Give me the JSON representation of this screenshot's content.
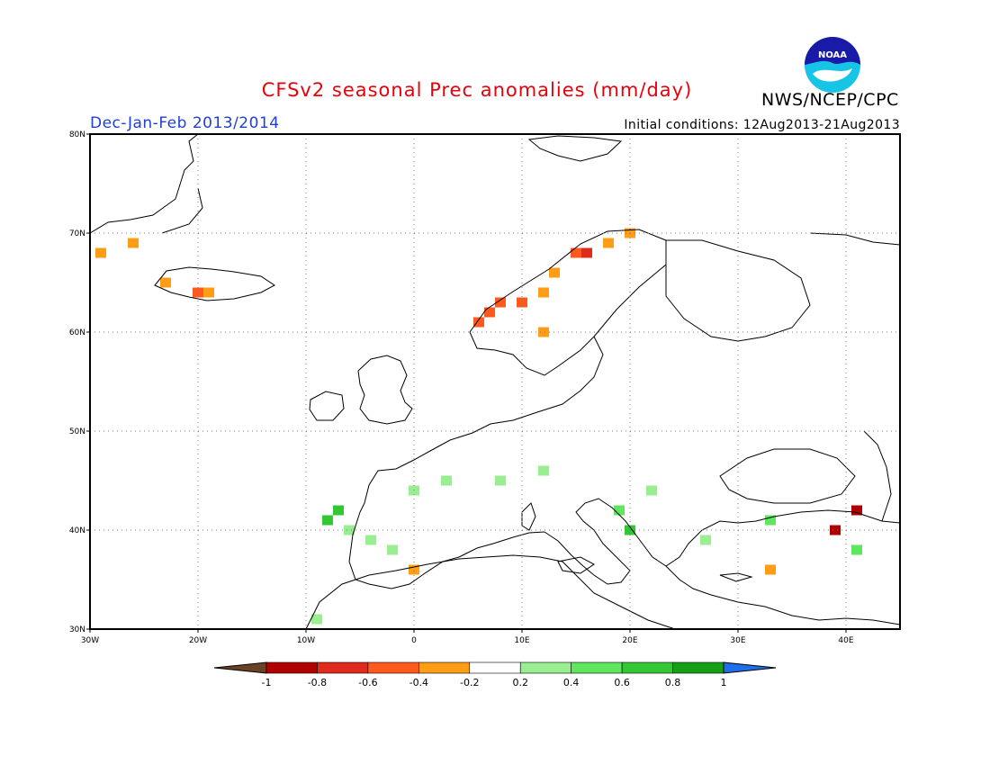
{
  "title": "CFSv2 seasonal Prec anomalies (mm/day)",
  "agency": "NWS/NCEP/CPC",
  "logo_text": "NOAA",
  "season": "Dec-Jan-Feb 2013/2014",
  "initial_conditions": "Initial conditions: 12Aug2013-21Aug2013",
  "map": {
    "lon_range": [
      -30,
      45
    ],
    "lat_range": [
      30,
      80
    ],
    "x_ticks": [
      {
        "lon": -30,
        "label": "30W"
      },
      {
        "lon": -20,
        "label": "20W"
      },
      {
        "lon": -10,
        "label": "10W"
      },
      {
        "lon": 0,
        "label": "0"
      },
      {
        "lon": 10,
        "label": "10E"
      },
      {
        "lon": 20,
        "label": "20E"
      },
      {
        "lon": 30,
        "label": "30E"
      },
      {
        "lon": 40,
        "label": "40E"
      }
    ],
    "y_ticks": [
      {
        "lat": 30,
        "label": "30N"
      },
      {
        "lat": 40,
        "label": "40N"
      },
      {
        "lat": 50,
        "label": "50N"
      },
      {
        "lat": 60,
        "label": "60N"
      },
      {
        "lat": 70,
        "label": "70N"
      },
      {
        "lat": 80,
        "label": "80N"
      }
    ],
    "grid": "dotted"
  },
  "colorbar": {
    "labels": [
      "-1",
      "-0.8",
      "-0.6",
      "-0.4",
      "-0.2",
      "0.2",
      "0.4",
      "0.6",
      "0.8",
      "1"
    ],
    "colors": [
      "#6b4226",
      "#b00000",
      "#e02a1b",
      "#ff5a1e",
      "#ff9e16",
      "#ffffff",
      "#98ee90",
      "#5ee65e",
      "#33c833",
      "#16a016",
      "#1f6fe8"
    ]
  },
  "chart_data": {
    "type": "heatmap",
    "title": "CFSv2 seasonal Prec anomalies (mm/day)",
    "cell_size_deg": 1,
    "anomaly_cells": [
      {
        "lon": -29,
        "lat": 68,
        "value": -0.3
      },
      {
        "lon": -26,
        "lat": 69,
        "value": -0.3
      },
      {
        "lon": -23,
        "lat": 65,
        "value": -0.3
      },
      {
        "lon": -20,
        "lat": 64,
        "value": -0.5
      },
      {
        "lon": -19,
        "lat": 64,
        "value": -0.3
      },
      {
        "lon": 6,
        "lat": 61,
        "value": -0.5
      },
      {
        "lon": 7,
        "lat": 62,
        "value": -0.5
      },
      {
        "lon": 8,
        "lat": 63,
        "value": -0.5
      },
      {
        "lon": 10,
        "lat": 63,
        "value": -0.5
      },
      {
        "lon": 12,
        "lat": 64,
        "value": -0.3
      },
      {
        "lon": 13,
        "lat": 66,
        "value": -0.3
      },
      {
        "lon": 15,
        "lat": 68,
        "value": -0.5
      },
      {
        "lon": 16,
        "lat": 68,
        "value": -0.7
      },
      {
        "lon": 18,
        "lat": 69,
        "value": -0.3
      },
      {
        "lon": 20,
        "lat": 70,
        "value": -0.3
      },
      {
        "lon": 12,
        "lat": 60,
        "value": -0.3
      },
      {
        "lon": -7,
        "lat": 42,
        "value": 0.7
      },
      {
        "lon": -8,
        "lat": 41,
        "value": 0.7
      },
      {
        "lon": -6,
        "lat": 40,
        "value": 0.3
      },
      {
        "lon": -4,
        "lat": 39,
        "value": 0.3
      },
      {
        "lon": -2,
        "lat": 38,
        "value": 0.3
      },
      {
        "lon": 0,
        "lat": 44,
        "value": 0.3
      },
      {
        "lon": 3,
        "lat": 45,
        "value": 0.3
      },
      {
        "lon": 8,
        "lat": 45,
        "value": 0.3
      },
      {
        "lon": 12,
        "lat": 46,
        "value": 0.3
      },
      {
        "lon": 19,
        "lat": 42,
        "value": 0.5
      },
      {
        "lon": 20,
        "lat": 40,
        "value": 0.7
      },
      {
        "lon": 22,
        "lat": 44,
        "value": 0.3
      },
      {
        "lon": 27,
        "lat": 39,
        "value": 0.3
      },
      {
        "lon": 33,
        "lat": 41,
        "value": 0.5
      },
      {
        "lon": 39,
        "lat": 40,
        "value": -0.9
      },
      {
        "lon": 41,
        "lat": 42,
        "value": -0.9
      },
      {
        "lon": 41,
        "lat": 38,
        "value": 0.5
      },
      {
        "lon": 33,
        "lat": 36,
        "value": -0.3
      },
      {
        "lon": 0,
        "lat": 36,
        "value": -0.3
      },
      {
        "lon": -9,
        "lat": 31,
        "value": 0.3
      }
    ]
  }
}
